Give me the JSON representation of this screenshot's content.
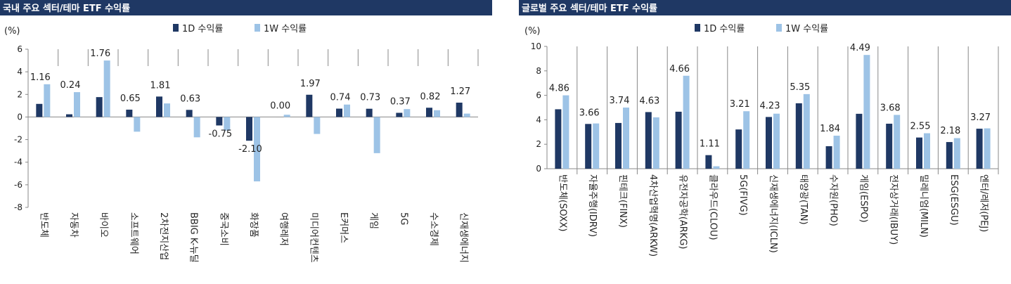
{
  "colors": {
    "header_bg": "#1F3864",
    "header_text": "#ffffff",
    "series_1d": "#1F3864",
    "series_1w": "#9DC3E6",
    "axis": "#888888",
    "text": "#222222"
  },
  "chart_data": [
    {
      "type": "bar",
      "title": "국내 주요 섹터/테마 ETF 수익률",
      "unit_label": "(%)",
      "ylim": [
        -8,
        6
      ],
      "yticks": [
        6,
        4,
        2,
        0,
        -2,
        -4,
        -6,
        -8
      ],
      "grid": false,
      "legend_position": "top",
      "categories": [
        "반도체",
        "자동차",
        "바이오",
        "소프트웨어",
        "2차전지산업",
        "BBIG K-뉴딜",
        "중국소비",
        "화장품",
        "여행레저",
        "미디어컨텐츠",
        "E커머스",
        "게임",
        "5G",
        "수소경제",
        "신재생에너지"
      ],
      "series": [
        {
          "name": "1D 수익률",
          "values": [
            1.16,
            0.24,
            1.76,
            0.65,
            1.81,
            0.63,
            -0.75,
            -2.1,
            0.0,
            1.97,
            0.74,
            0.73,
            0.37,
            0.82,
            1.27
          ],
          "labels": [
            "1.16",
            "0.24",
            "1.76",
            "0.65",
            "1.81",
            "0.63",
            "-0.75",
            "-2.10",
            "0.00",
            "1.97",
            "0.74",
            "0.73",
            "0.37",
            "0.82",
            "1.27"
          ]
        },
        {
          "name": "1W 수익률",
          "values": [
            2.9,
            2.2,
            5.0,
            -1.3,
            1.2,
            -1.8,
            -1.2,
            -5.7,
            0.2,
            -1.5,
            1.1,
            -3.2,
            0.7,
            0.6,
            0.3
          ]
        }
      ]
    },
    {
      "type": "bar",
      "title": "글로벌 주요 섹터/테마 ETF 수익률",
      "unit_label": "(%)",
      "ylim": [
        0,
        10
      ],
      "yticks": [
        10,
        8,
        6,
        4,
        2,
        0
      ],
      "grid": false,
      "legend_position": "top",
      "categories": [
        "반도체(SOXX)",
        "자율주행(IDRV)",
        "핀테크(FINX)",
        "4차산업혁명(ARKW)",
        "유전자공학(ARKG)",
        "클라우드(CLOU)",
        "5G(FIVG)",
        "신재생에너지(ICLN)",
        "태양광(TAN)",
        "수자원(PHO)",
        "게임(ESPO)",
        "전자상거래(IBUY)",
        "밀레니엄(MILN)",
        "ESG(ESGU)",
        "엔터/레저(PEJ)"
      ],
      "series": [
        {
          "name": "1D 수익률",
          "values": [
            4.86,
            3.66,
            3.74,
            4.63,
            4.66,
            1.11,
            3.21,
            4.23,
            5.35,
            1.84,
            4.49,
            3.68,
            2.55,
            2.18,
            3.27
          ],
          "labels": [
            "4.86",
            "3.66",
            "3.74",
            "4.63",
            "4.66",
            "1.11",
            "3.21",
            "4.23",
            "5.35",
            "1.84",
            "4.49",
            "3.68",
            "2.55",
            "2.18",
            "3.27"
          ]
        },
        {
          "name": "1W 수익률",
          "values": [
            6.0,
            3.7,
            5.0,
            4.2,
            7.6,
            0.2,
            4.7,
            4.5,
            6.1,
            2.7,
            9.3,
            4.4,
            2.9,
            2.5,
            3.3
          ]
        }
      ]
    }
  ]
}
